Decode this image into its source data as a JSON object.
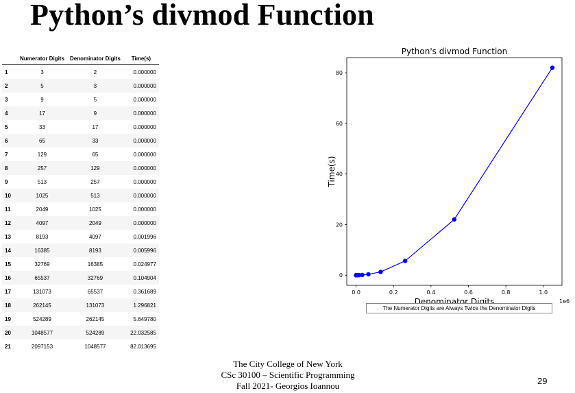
{
  "slide": {
    "title": "Python’s divmod Function",
    "footer_lines": [
      "The City College of New York",
      "CSc 30100 – Scientific Programming",
      "Fall 2021- Georgios Ioannou"
    ],
    "page_number": "29"
  },
  "table": {
    "columns": [
      "",
      "Numerator Digits",
      "Denominator Digits",
      "Time(s)"
    ],
    "rows": [
      [
        "1",
        "3",
        "2",
        "0.000000"
      ],
      [
        "2",
        "5",
        "3",
        "0.000000"
      ],
      [
        "3",
        "9",
        "5",
        "0.000000"
      ],
      [
        "4",
        "17",
        "9",
        "0.000000"
      ],
      [
        "5",
        "33",
        "17",
        "0.000000"
      ],
      [
        "6",
        "65",
        "33",
        "0.000000"
      ],
      [
        "7",
        "129",
        "65",
        "0.000000"
      ],
      [
        "8",
        "257",
        "129",
        "0.000000"
      ],
      [
        "9",
        "513",
        "257",
        "0.000000"
      ],
      [
        "10",
        "1025",
        "513",
        "0.000000"
      ],
      [
        "11",
        "2049",
        "1025",
        "0.000000"
      ],
      [
        "12",
        "4097",
        "2049",
        "0.000000"
      ],
      [
        "13",
        "8193",
        "4097",
        "0.001996"
      ],
      [
        "14",
        "16385",
        "8193",
        "0.005996"
      ],
      [
        "15",
        "32769",
        "16385",
        "0.024977"
      ],
      [
        "16",
        "65537",
        "32769",
        "0.104904"
      ],
      [
        "17",
        "131073",
        "65537",
        "0.361689"
      ],
      [
        "18",
        "262145",
        "131073",
        "1.296821"
      ],
      [
        "19",
        "524289",
        "262145",
        "5.649780"
      ],
      [
        "20",
        "1048577",
        "524289",
        "22.032585"
      ],
      [
        "21",
        "2097153",
        "1048577",
        "82.013695"
      ]
    ]
  },
  "chart_data": {
    "type": "line",
    "title": "Python's divmod Function",
    "xlabel": "Denominator Digits",
    "ylabel": "Time(s)",
    "x_offset_label": "1e6",
    "caption": "The Numerator Digits are Always Twice the Denominator Digits",
    "xlim": [
      -0.05,
      1.1
    ],
    "ylim": [
      -4,
      86
    ],
    "xticks": [
      0.0,
      0.2,
      0.4,
      0.6,
      0.8,
      1.0
    ],
    "xtick_labels": [
      "0.0",
      "0.2",
      "0.4",
      "0.6",
      "0.8",
      "1.0"
    ],
    "yticks": [
      0,
      20,
      40,
      60,
      80
    ],
    "ytick_labels": [
      "0",
      "20",
      "40",
      "60",
      "80"
    ],
    "color": "#0000ff",
    "x": [
      2e-06,
      3e-06,
      5e-06,
      9e-06,
      1.7e-05,
      3.3e-05,
      6.5e-05,
      0.000129,
      0.000257,
      0.000513,
      0.001025,
      0.002049,
      0.004097,
      0.008193,
      0.016385,
      0.032769,
      0.065537,
      0.131073,
      0.262145,
      0.524289,
      1.048577
    ],
    "y": [
      0,
      0,
      0,
      0,
      0,
      0,
      0,
      0,
      0,
      0,
      0,
      0,
      0.001996,
      0.005996,
      0.024977,
      0.104904,
      0.361689,
      1.296821,
      5.64978,
      22.032585,
      82.013695
    ]
  }
}
